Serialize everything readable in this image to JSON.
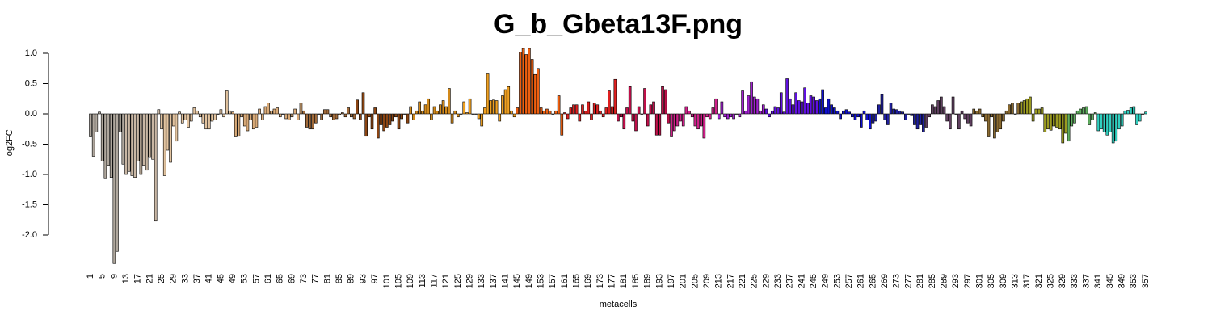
{
  "chart_data": {
    "type": "bar",
    "title": "G_b_Gbeta13F.png",
    "y_label": "log2FC",
    "x_label": "metacells",
    "ylim": [
      -2.5,
      1.1
    ],
    "yticks": [
      {
        "value": 1,
        "label": "1.0"
      },
      0.5,
      {
        "value": 0,
        "label": "0.0"
      },
      -0.5,
      {
        "value": -1,
        "label": "-1.0"
      },
      -1.5,
      {
        "value": -2,
        "label": "-2.0"
      }
    ],
    "categories": [
      "1",
      null,
      null,
      null,
      "5",
      null,
      null,
      null,
      "9",
      null,
      null,
      null,
      "13",
      null,
      null,
      null,
      "17",
      null,
      null,
      null,
      "21",
      null,
      null,
      null,
      "25",
      null,
      null,
      null,
      "29",
      null,
      null,
      null,
      "33",
      null,
      null,
      null,
      "37",
      null,
      null,
      null,
      "41",
      null,
      null,
      null,
      "45",
      null,
      null,
      null,
      "49",
      null,
      null,
      null,
      "53",
      null,
      null,
      null,
      "57",
      null,
      null,
      null,
      "61",
      null,
      null,
      null,
      "65",
      null,
      null,
      null,
      "69",
      null,
      null,
      null,
      "73",
      null,
      null,
      null,
      "77",
      null,
      null,
      null,
      "81",
      null,
      null,
      null,
      "85",
      null,
      null,
      null,
      "89",
      null,
      null,
      null,
      "93",
      null,
      null,
      null,
      "97",
      null,
      null,
      null,
      "101",
      null,
      null,
      null,
      "105",
      null,
      null,
      null,
      "109",
      null,
      null,
      null,
      "113",
      null,
      null,
      null,
      "117",
      null,
      null,
      null,
      "121",
      null,
      null,
      null,
      "125",
      null,
      null,
      null,
      "129",
      null,
      null,
      null,
      "133",
      null,
      null,
      null,
      "137",
      null,
      null,
      null,
      "141",
      null,
      null,
      null,
      "145",
      null,
      null,
      null,
      "149",
      null,
      null,
      null,
      "153",
      null,
      null,
      null,
      "157",
      null,
      null,
      null,
      "161",
      null,
      null,
      null,
      "165",
      null,
      null,
      null,
      "169",
      null,
      null,
      null,
      "173",
      null,
      null,
      null,
      "177",
      null,
      null,
      null,
      "181",
      null,
      null,
      null,
      "185",
      null,
      null,
      null,
      "189",
      null,
      null,
      null,
      "193",
      null,
      null,
      null,
      "197",
      null,
      null,
      null,
      "201",
      null,
      null,
      null,
      "205",
      null,
      null,
      null,
      "209",
      null,
      null,
      null,
      "213",
      null,
      null,
      null,
      "217",
      null,
      null,
      null,
      "221",
      null,
      null,
      null,
      "225",
      null,
      null,
      null,
      "229",
      null,
      null,
      null,
      "233",
      null,
      null,
      null,
      "237",
      null,
      null,
      null,
      "241",
      null,
      null,
      null,
      "245",
      null,
      null,
      null,
      "249",
      null,
      null,
      null,
      "253",
      null,
      null,
      null,
      "257",
      null,
      null,
      null,
      "261",
      null,
      null,
      null,
      "265",
      null,
      null,
      null,
      "269",
      null,
      null,
      null,
      "273",
      null,
      null,
      null,
      "277",
      null,
      null,
      null,
      "281",
      null,
      null,
      null,
      "285",
      null,
      null,
      null,
      "289",
      null,
      null,
      null,
      "293",
      null,
      null,
      null,
      "297",
      null,
      null,
      null,
      "301",
      null,
      null,
      null,
      "305",
      null,
      null,
      null,
      "309",
      null,
      null,
      null,
      "313",
      null,
      null,
      null,
      "317",
      null,
      null,
      null,
      "321",
      null,
      null,
      null,
      "325",
      null,
      null,
      null,
      "329",
      null,
      null,
      null,
      "333",
      null,
      null,
      null,
      "337",
      null,
      null,
      null,
      "341",
      null,
      null,
      null,
      "345",
      null,
      null,
      null,
      "349",
      null,
      null,
      null,
      "353",
      null,
      null,
      null,
      "357"
    ],
    "values": [
      -0.38,
      -0.7,
      -0.3,
      0.03,
      -0.78,
      -1.07,
      -0.85,
      -1.05,
      -2.47,
      -2.27,
      -0.3,
      -0.83,
      -1.0,
      -0.95,
      -1.02,
      -1.05,
      -0.78,
      -1.0,
      -0.85,
      -0.93,
      -0.72,
      -0.75,
      -1.77,
      0.07,
      -0.25,
      -1.02,
      -0.6,
      -0.8,
      -0.2,
      -0.45,
      0.03,
      -0.15,
      -0.1,
      -0.22,
      -0.12,
      0.1,
      0.05,
      -0.05,
      -0.15,
      -0.25,
      -0.25,
      -0.12,
      -0.1,
      0.0,
      0.07,
      -0.05,
      0.38,
      0.05,
      0.03,
      -0.38,
      -0.37,
      -0.05,
      -0.2,
      -0.28,
      -0.1,
      -0.25,
      -0.22,
      0.08,
      -0.1,
      0.12,
      0.18,
      0.05,
      0.08,
      0.1,
      -0.05,
      0.0,
      -0.08,
      -0.1,
      -0.05,
      0.08,
      -0.1,
      0.18,
      0.05,
      -0.22,
      -0.25,
      -0.25,
      -0.15,
      0.0,
      -0.1,
      0.07,
      0.07,
      -0.05,
      -0.1,
      -0.08,
      -0.02,
      0.02,
      -0.05,
      0.1,
      -0.05,
      -0.08,
      0.23,
      -0.1,
      0.35,
      -0.37,
      -0.05,
      -0.25,
      0.1,
      -0.4,
      -0.18,
      -0.28,
      -0.22,
      -0.18,
      -0.12,
      -0.05,
      -0.25,
      -0.08,
      0.0,
      -0.15,
      0.12,
      -0.1,
      0.05,
      0.2,
      0.05,
      0.15,
      0.25,
      -0.1,
      0.12,
      0.05,
      0.15,
      0.22,
      0.12,
      0.42,
      -0.15,
      0.05,
      -0.05,
      0.0,
      0.2,
      0.02,
      0.25,
      0.0,
      0.0,
      -0.08,
      -0.2,
      0.1,
      0.66,
      0.22,
      0.23,
      0.22,
      -0.12,
      0.3,
      0.4,
      0.45,
      0.05,
      -0.05,
      0.1,
      1.02,
      1.08,
      0.98,
      1.08,
      0.9,
      0.65,
      0.75,
      0.1,
      0.05,
      0.08,
      0.05,
      0.0,
      0.05,
      0.3,
      -0.35,
      0.02,
      -0.08,
      0.1,
      0.15,
      0.15,
      -0.12,
      0.15,
      0.05,
      0.2,
      -0.1,
      0.18,
      0.15,
      0.05,
      -0.05,
      0.1,
      0.38,
      0.12,
      0.57,
      -0.12,
      -0.05,
      -0.25,
      0.1,
      0.45,
      -0.12,
      -0.28,
      0.12,
      0.0,
      0.42,
      -0.2,
      0.15,
      0.2,
      -0.35,
      -0.35,
      0.45,
      0.4,
      -0.15,
      -0.38,
      -0.28,
      -0.2,
      -0.12,
      -0.2,
      0.12,
      0.05,
      -0.05,
      -0.2,
      -0.25,
      -0.2,
      -0.4,
      -0.05,
      -0.08,
      0.1,
      0.25,
      -0.08,
      0.2,
      -0.05,
      -0.08,
      -0.05,
      -0.08,
      0.0,
      -0.05,
      0.38,
      0.05,
      0.3,
      0.53,
      0.28,
      0.25,
      0.05,
      0.15,
      0.08,
      -0.05,
      0.05,
      0.12,
      0.1,
      0.35,
      0.03,
      0.58,
      0.25,
      0.15,
      0.35,
      0.22,
      0.2,
      0.43,
      0.18,
      0.3,
      0.28,
      0.22,
      0.25,
      0.4,
      0.1,
      0.25,
      0.15,
      0.1,
      0.05,
      -0.08,
      0.05,
      0.07,
      0.03,
      -0.05,
      -0.1,
      -0.05,
      -0.22,
      0.05,
      -0.1,
      -0.25,
      -0.15,
      -0.12,
      0.15,
      0.32,
      -0.1,
      -0.18,
      0.18,
      0.08,
      0.07,
      0.05,
      0.03,
      -0.1,
      0.0,
      -0.03,
      -0.18,
      -0.25,
      -0.18,
      -0.3,
      -0.22,
      -0.05,
      0.15,
      0.12,
      0.22,
      0.28,
      0.12,
      -0.12,
      -0.25,
      0.28,
      0.0,
      -0.25,
      0.05,
      -0.08,
      -0.15,
      -0.2,
      0.08,
      0.05,
      0.08,
      -0.05,
      -0.12,
      -0.38,
      -0.05,
      -0.4,
      -0.3,
      -0.25,
      -0.12,
      0.05,
      0.15,
      0.18,
      0.0,
      0.18,
      0.2,
      0.22,
      0.25,
      0.28,
      -0.12,
      0.08,
      0.08,
      0.1,
      -0.3,
      -0.25,
      -0.27,
      -0.2,
      -0.22,
      -0.25,
      -0.48,
      -0.32,
      -0.45,
      -0.2,
      -0.15,
      0.05,
      0.08,
      0.1,
      0.12,
      -0.18,
      -0.1,
      0.02,
      -0.28,
      -0.25,
      -0.3,
      -0.35,
      -0.3,
      -0.48,
      -0.45,
      -0.25,
      -0.2,
      0.05,
      0.06,
      0.1,
      0.12,
      -0.18,
      -0.12,
      0.0,
      0.03
    ],
    "colors": [
      "#b0a89e",
      "#b0a89e",
      "#b0a89e",
      "#b0a89e",
      "#b0a89e",
      "#b0a89e",
      "#b0a89e",
      "#b0a89e",
      "#b0a89e",
      "#b0a89e",
      "#b0a89e",
      "#b0a89e",
      "#c9b7a4",
      "#c9b7a4",
      "#c9b7a4",
      "#c9b7a4",
      "#c9b7a4",
      "#c9b7a4",
      "#c9b7a4",
      "#c9b7a4",
      "#c9b7a4",
      "#c9b7a4",
      "#c9b7a4",
      "#c9b7a4",
      "#e3c4a0",
      "#e3c4a0",
      "#e3c4a0",
      "#e3c4a0",
      "#e3c4a0",
      "#e3c4a0",
      "#e3c4a0",
      "#e3c4a0",
      "#e3c4a0",
      "#e3c4a0",
      "#e3c4a0",
      "#e3c4a0",
      "#e3c4a0",
      "#e3c4a0",
      "#e3c4a0",
      "#e3c4a0",
      "#e3c4a0",
      "#e3c4a0",
      "#e3c4a0",
      "#e3c4a0",
      "#e3c4a0",
      "#e3c4a0",
      "#e3c4a0",
      "#e3c4a0",
      "#d9aa78",
      "#d9aa78",
      "#d9aa78",
      "#d9aa78",
      "#d9aa78",
      "#d9aa78",
      "#d9aa78",
      "#d9aa78",
      "#d9aa78",
      "#d9aa78",
      "#d9aa78",
      "#d9aa78",
      "#d9aa78",
      "#d9aa78",
      "#d9aa78",
      "#d9aa78",
      "#d9aa78",
      "#d9aa78",
      "#d9aa78",
      "#d9aa78",
      "#d9aa78",
      "#d9aa78",
      "#d9aa78",
      "#d9aa78",
      "#a06a3a",
      "#a06a3a",
      "#a06a3a",
      "#a06a3a",
      "#a06a3a",
      "#a06a3a",
      "#a06a3a",
      "#a06a3a",
      "#a06a3a",
      "#a06a3a",
      "#a06a3a",
      "#a06a3a",
      "#a06a3a",
      "#a06a3a",
      "#a06a3a",
      "#a06a3a",
      "#a06a3a",
      "#a06a3a",
      "#8b4513",
      "#8b4513",
      "#8b4513",
      "#8b4513",
      "#8b4513",
      "#8b4513",
      "#8b4513",
      "#8b4513",
      "#8b4513",
      "#8b4513",
      "#8b4513",
      "#8b4513",
      "#8b4513",
      "#8b4513",
      "#8b4513",
      "#8b4513",
      "#8b4513",
      "#8b4513",
      "#d2891a",
      "#d2891a",
      "#d2891a",
      "#d2891a",
      "#d2891a",
      "#d2891a",
      "#d2891a",
      "#d2891a",
      "#d2891a",
      "#d2891a",
      "#d2891a",
      "#d2891a",
      "#d2891a",
      "#d2891a",
      "#d2891a",
      "#d2891a",
      "#d2891a",
      "#d2891a",
      "#f0a020",
      "#f0a020",
      "#f0a020",
      "#f0a020",
      "#f0a020",
      "#f0a020",
      "#f0a020",
      "#f0a020",
      "#f0a020",
      "#f0a020",
      "#f0a020",
      "#f0a020",
      "#f0a020",
      "#f0a020",
      "#f0a020",
      "#f0a020",
      "#f0a020",
      "#f0a020",
      "#f06010",
      "#f06010",
      "#f06010",
      "#f06010",
      "#f06010",
      "#f06010",
      "#f06010",
      "#f06010",
      "#f06010",
      "#f06010",
      "#f06010",
      "#f06010",
      "#f06010",
      "#f06010",
      "#f06010",
      "#f06010",
      "#e02020",
      "#e02020",
      "#e02020",
      "#e02020",
      "#e02020",
      "#e02020",
      "#e02020",
      "#e02020",
      "#e02020",
      "#e02020",
      "#e02020",
      "#e02020",
      "#e02020",
      "#e02020",
      "#e02020",
      "#e02020",
      "#e02020",
      "#e02020",
      "#c0104a",
      "#c0104a",
      "#c0104a",
      "#c0104a",
      "#c0104a",
      "#c0104a",
      "#c0104a",
      "#c0104a",
      "#c0104a",
      "#c0104a",
      "#c0104a",
      "#c0104a",
      "#c0104a",
      "#c0104a",
      "#c0104a",
      "#c0104a",
      "#c0104a",
      "#c0104a",
      "#d0208a",
      "#d0208a",
      "#d0208a",
      "#d0208a",
      "#d0208a",
      "#d0208a",
      "#d0208a",
      "#d0208a",
      "#d0208a",
      "#d0208a",
      "#d0208a",
      "#d0208a",
      "#d0208a",
      "#d0208a",
      "#d0208a",
      "#d0208a",
      "#a020d0",
      "#a020d0",
      "#a020d0",
      "#a020d0",
      "#a020d0",
      "#a020d0",
      "#a020d0",
      "#a020d0",
      "#a020d0",
      "#a020d0",
      "#a020d0",
      "#a020d0",
      "#a020d0",
      "#a020d0",
      "#a020d0",
      "#a020d0",
      "#6010e0",
      "#6010e0",
      "#6010e0",
      "#6010e0",
      "#6010e0",
      "#6010e0",
      "#6010e0",
      "#6010e0",
      "#6010e0",
      "#6010e0",
      "#6010e0",
      "#6010e0",
      "#6010e0",
      "#6010e0",
      "#6010e0",
      "#6010e0",
      "#6010e0",
      "#6010e0",
      "#1010d0",
      "#1010d0",
      "#1010d0",
      "#1010d0",
      "#1010d0",
      "#1010d0",
      "#1010d0",
      "#1010d0",
      "#1010d0",
      "#1010d0",
      "#1010d0",
      "#1010d0",
      "#1010d0",
      "#1010d0",
      "#1010d0",
      "#1010d0",
      "#1010d0",
      "#1010d0",
      "#2020a0",
      "#2020a0",
      "#2020a0",
      "#2020a0",
      "#2020a0",
      "#2020a0",
      "#2020a0",
      "#2020a0",
      "#2020a0",
      "#2020a0",
      "#2020a0",
      "#2020a0",
      "#2020a0",
      "#2020a0",
      "#2020a0",
      "#2020a0",
      "#2020a0",
      "#2020a0",
      "#604060",
      "#604060",
      "#604060",
      "#604060",
      "#604060",
      "#604060",
      "#604060",
      "#604060",
      "#604060",
      "#604060",
      "#604060",
      "#604060",
      "#604060",
      "#604060",
      "#604060",
      "#604060",
      "#8a6a30",
      "#8a6a30",
      "#8a6a30",
      "#8a6a30",
      "#8a6a30",
      "#8a6a30",
      "#8a6a30",
      "#8a6a30",
      "#8a6a30",
      "#8a6a30",
      "#8a6a30",
      "#8a6a30",
      "#8a6a30",
      "#8a6a30",
      "#8a6a30",
      "#8a6a30",
      "#9a9a20",
      "#9a9a20",
      "#9a9a20",
      "#9a9a20",
      "#9a9a20",
      "#9a9a20",
      "#9a9a20",
      "#9a9a20",
      "#9a9a20",
      "#9a9a20",
      "#9a9a20",
      "#9a9a20",
      "#9a9a20",
      "#9a9a20",
      "#9a9a20",
      "#9a9a20",
      "#60b060",
      "#60b060",
      "#60b060",
      "#60b060",
      "#60b060",
      "#60b060",
      "#60b060",
      "#60b060",
      "#60b060",
      "#60b060",
      "#30d0c0",
      "#30d0c0",
      "#30d0c0",
      "#30d0c0",
      "#30d0c0",
      "#30d0c0",
      "#30d0c0",
      "#30d0c0",
      "#30d0c0",
      "#30d0c0",
      "#30d0c0",
      "#30d0c0",
      "#30d0c0",
      "#30d0c0",
      "#30d0c0",
      "#30d0c0",
      "#30d0c0"
    ]
  }
}
